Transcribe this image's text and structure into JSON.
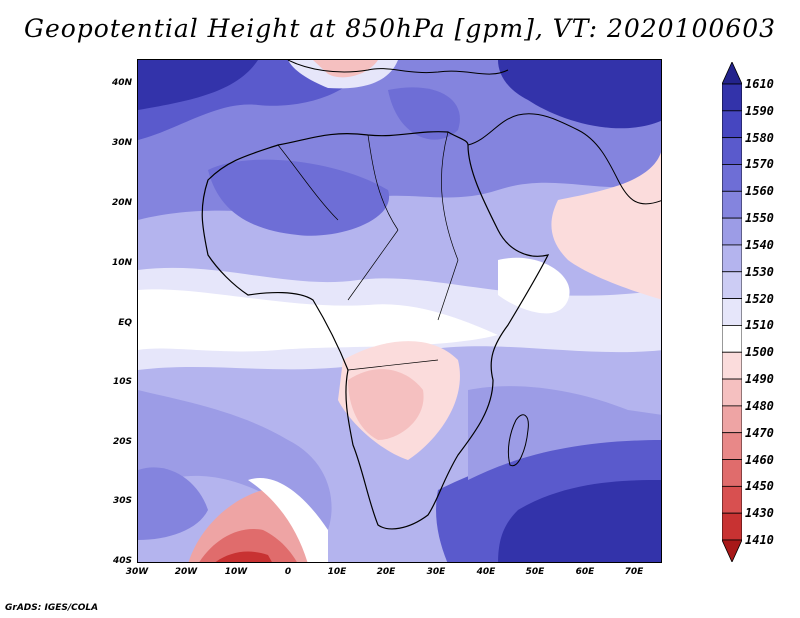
{
  "title": "Geopotential Height at 850hPa [gpm], VT: 2020100603",
  "credit": "GrADS: IGES/COLA",
  "map": {
    "region": "Africa",
    "lat_labels": [
      "40N",
      "30N",
      "20N",
      "10N",
      "EQ",
      "10S",
      "20S",
      "30S",
      "40S"
    ],
    "lon_labels": [
      "30W",
      "20W",
      "10W",
      "0",
      "10E",
      "20E",
      "30E",
      "40E",
      "50E",
      "60E",
      "70E"
    ]
  },
  "colorbar": {
    "labels": [
      "1610",
      "1590",
      "1580",
      "1570",
      "1560",
      "1550",
      "1540",
      "1530",
      "1520",
      "1510",
      "1500",
      "1490",
      "1480",
      "1470",
      "1460",
      "1450",
      "1430",
      "1410"
    ],
    "colors": [
      "#23238c",
      "#3333aa",
      "#4646c0",
      "#5a5acc",
      "#6e6ed6",
      "#8484de",
      "#9c9ce6",
      "#b4b4ee",
      "#ccccf4",
      "#e6e6fa",
      "#ffffff",
      "#fbdcdc",
      "#f5c0c0",
      "#eea4a4",
      "#e88888",
      "#e06c6c",
      "#d85050",
      "#c83232",
      "#a81818"
    ]
  }
}
